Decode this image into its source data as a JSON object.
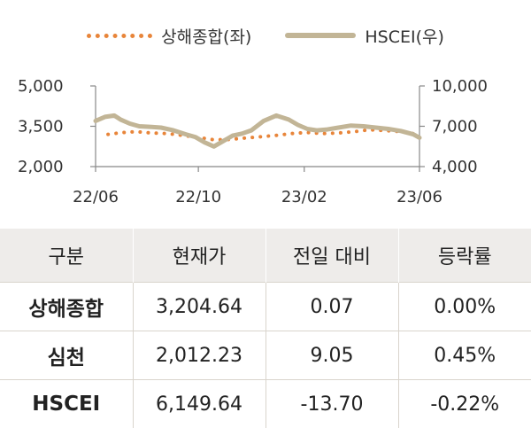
{
  "chart_data": {
    "type": "line",
    "x_ticks": [
      "22/06",
      "22/10",
      "23/02",
      "23/06"
    ],
    "x_range": [
      "2022-06",
      "2023-06"
    ],
    "y_left": {
      "ticks": [
        "5,000",
        "3,500",
        "2,000"
      ],
      "range": [
        2000,
        5000
      ]
    },
    "y_right": {
      "ticks": [
        "10,000",
        "7,000",
        "4,000"
      ],
      "range": [
        4000,
        10000
      ]
    },
    "legend_position": "top-center",
    "series": [
      {
        "name": "상해종합(좌)",
        "axis": "left",
        "style": "dotted",
        "color": "#e8853a",
        "x": [
          2022.46,
          2022.5,
          2022.55,
          2022.6,
          2022.65,
          2022.7,
          2022.75,
          2022.8,
          2022.85,
          2022.9,
          2022.95,
          2023.0,
          2023.05,
          2023.1,
          2023.15,
          2023.2,
          2023.25,
          2023.3,
          2023.35,
          2023.4,
          2023.45
        ],
        "values": [
          3200,
          3260,
          3300,
          3250,
          3230,
          3160,
          3080,
          3000,
          3010,
          3060,
          3110,
          3160,
          3230,
          3270,
          3230,
          3250,
          3300,
          3370,
          3340,
          3300,
          3205
        ]
      },
      {
        "name": "HSCEI(우)",
        "axis": "right",
        "style": "solid",
        "color": "#c2b596",
        "x": [
          2022.42,
          2022.45,
          2022.48,
          2022.5,
          2022.53,
          2022.56,
          2022.6,
          2022.63,
          2022.67,
          2022.71,
          2022.74,
          2022.77,
          2022.8,
          2022.83,
          2022.86,
          2022.89,
          2022.92,
          2022.96,
          2023.0,
          2023.04,
          2023.07,
          2023.1,
          2023.13,
          2023.16,
          2023.2,
          2023.24,
          2023.28,
          2023.32,
          2023.36,
          2023.4,
          2023.44,
          2023.46
        ],
        "values": [
          7400,
          7700,
          7800,
          7500,
          7200,
          7000,
          6950,
          6900,
          6700,
          6400,
          6200,
          5800,
          5500,
          5900,
          6300,
          6450,
          6700,
          7400,
          7800,
          7500,
          7100,
          6800,
          6700,
          6750,
          6900,
          7050,
          7000,
          6900,
          6800,
          6650,
          6400,
          6150
        ]
      }
    ]
  },
  "table": {
    "headers": [
      "구분",
      "현재가",
      "전일 대비",
      "등락률"
    ],
    "rows": [
      [
        "상해종합",
        "3,204.64",
        "0.07",
        "0.00%"
      ],
      [
        "심천",
        "2,012.23",
        "9.05",
        "0.45%"
      ],
      [
        "HSCEI",
        "6,149.64",
        "-13.70",
        "-0.22%"
      ]
    ]
  }
}
